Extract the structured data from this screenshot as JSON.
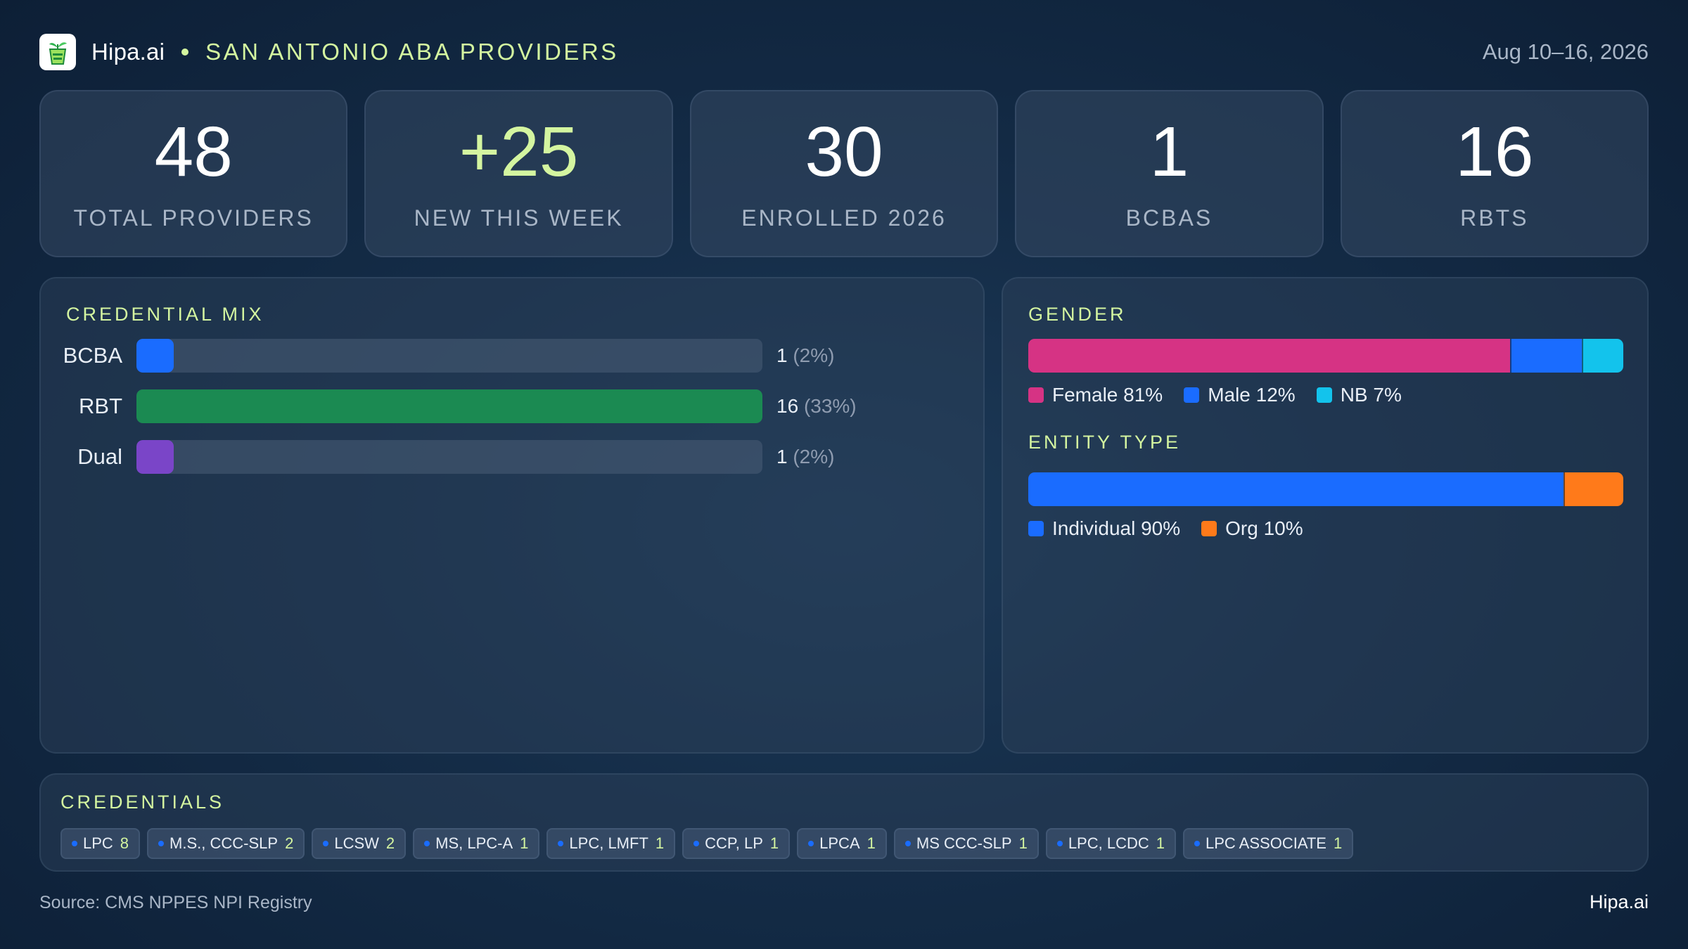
{
  "header": {
    "brand": "Hipa.ai",
    "subtitle": "SAN ANTONIO ABA PROVIDERS",
    "date_range": "Aug 10–16, 2026",
    "logo_icon": "plant-cup-icon"
  },
  "kpis": [
    {
      "value": "48",
      "label": "TOTAL PROVIDERS",
      "accent": false
    },
    {
      "value": "+25",
      "label": "NEW THIS WEEK",
      "accent": true
    },
    {
      "value": "30",
      "label": "ENROLLED 2026",
      "accent": false
    },
    {
      "value": "1",
      "label": "BCBAS",
      "accent": false
    },
    {
      "value": "16",
      "label": "RBTS",
      "accent": false
    }
  ],
  "credential_mix": {
    "title": "CREDENTIAL MIX",
    "rows": [
      {
        "label": "BCBA",
        "count": "1",
        "pct": "(2%)",
        "fraction": 0.06,
        "color": "#1a6cff"
      },
      {
        "label": "RBT",
        "count": "16",
        "pct": "(33%)",
        "fraction": 1.0,
        "color": "#1b8a52"
      },
      {
        "label": "Dual",
        "count": "1",
        "pct": "(2%)",
        "fraction": 0.06,
        "color": "#7a45c8"
      }
    ]
  },
  "gender": {
    "title": "GENDER",
    "segments": [
      {
        "label": "Female 81%",
        "fraction": 0.81,
        "color": "#d63384"
      },
      {
        "label": "Male 12%",
        "fraction": 0.12,
        "color": "#1a6cff"
      },
      {
        "label": "NB 7%",
        "fraction": 0.07,
        "color": "#13c3ec"
      }
    ]
  },
  "entity_type": {
    "title": "ENTITY TYPE",
    "segments": [
      {
        "label": "Individual 90%",
        "fraction": 0.9,
        "color": "#1a6cff"
      },
      {
        "label": "Org 10%",
        "fraction": 0.1,
        "color": "#ff7a1a"
      }
    ]
  },
  "credentials": {
    "title": "CREDENTIALS",
    "chips": [
      {
        "name": "LPC",
        "count": "8"
      },
      {
        "name": "M.S., CCC-SLP",
        "count": "2"
      },
      {
        "name": "LCSW",
        "count": "2"
      },
      {
        "name": "MS, LPC-A",
        "count": "1"
      },
      {
        "name": "LPC, LMFT",
        "count": "1"
      },
      {
        "name": "CCP, LP",
        "count": "1"
      },
      {
        "name": "LPCA",
        "count": "1"
      },
      {
        "name": "MS CCC-SLP",
        "count": "1"
      },
      {
        "name": "LPC, LCDC",
        "count": "1"
      },
      {
        "name": "LPC ASSOCIATE",
        "count": "1"
      }
    ]
  },
  "footer": {
    "source": "Source: CMS NPPES NPI Registry",
    "brand": "Hipa.ai"
  }
}
